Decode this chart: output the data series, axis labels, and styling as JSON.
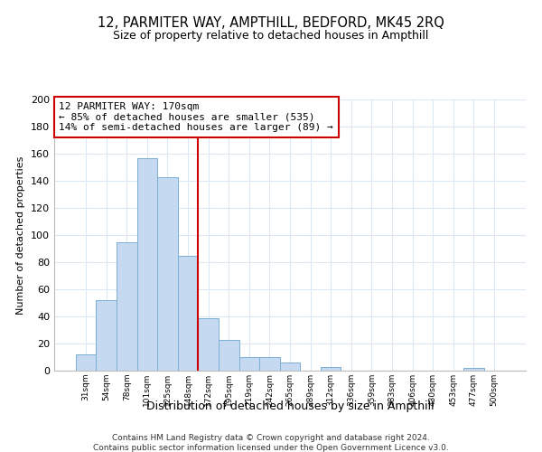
{
  "title": "12, PARMITER WAY, AMPTHILL, BEDFORD, MK45 2RQ",
  "subtitle": "Size of property relative to detached houses in Ampthill",
  "xlabel": "Distribution of detached houses by size in Ampthill",
  "ylabel": "Number of detached properties",
  "bin_labels": [
    "31sqm",
    "54sqm",
    "78sqm",
    "101sqm",
    "125sqm",
    "148sqm",
    "172sqm",
    "195sqm",
    "219sqm",
    "242sqm",
    "265sqm",
    "289sqm",
    "312sqm",
    "336sqm",
    "359sqm",
    "383sqm",
    "406sqm",
    "430sqm",
    "453sqm",
    "477sqm",
    "500sqm"
  ],
  "bar_heights": [
    12,
    52,
    95,
    157,
    143,
    85,
    39,
    23,
    10,
    10,
    6,
    0,
    3,
    0,
    0,
    0,
    0,
    0,
    0,
    2,
    0
  ],
  "bar_color": "#c5d9f0",
  "bar_edge_color": "#7aafd4",
  "reference_line_color": "#cc0000",
  "annotation_line1": "12 PARMITER WAY: 170sqm",
  "annotation_line2": "← 85% of detached houses are smaller (535)",
  "annotation_line3": "14% of semi-detached houses are larger (89) →",
  "annotation_box_color": "#ffffff",
  "annotation_box_edge": "#cc0000",
  "ylim": [
    0,
    200
  ],
  "yticks": [
    0,
    20,
    40,
    60,
    80,
    100,
    120,
    140,
    160,
    180,
    200
  ],
  "footer_line1": "Contains HM Land Registry data © Crown copyright and database right 2024.",
  "footer_line2": "Contains public sector information licensed under the Open Government Licence v3.0.",
  "grid_color": "#dce9f5",
  "ref_bar_index": 6
}
